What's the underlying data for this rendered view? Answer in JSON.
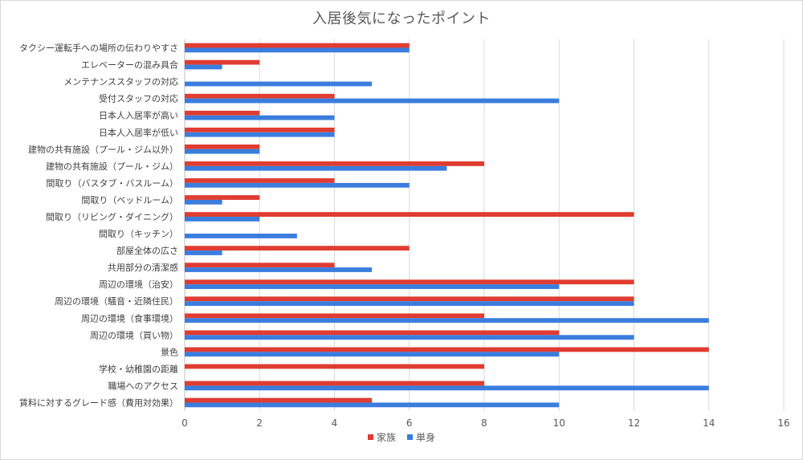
{
  "chart_data": {
    "type": "bar",
    "orientation": "horizontal",
    "title": "入居後気になったポイント",
    "xlabel": "",
    "ylabel": "",
    "xlim": [
      0,
      16
    ],
    "x_ticks": [
      0,
      2,
      4,
      6,
      8,
      10,
      12,
      14,
      16
    ],
    "grid": "vertical",
    "legend_position": "bottom",
    "categories": [
      "タクシー運転手への場所の伝わりやすさ",
      "エレベーターの混み具合",
      "メンテナンススタッフの対応",
      "受付スタッフの対応",
      "日本人入居率が高い",
      "日本人入居率が低い",
      "建物の共有施設（プール・ジム以外）",
      "建物の共有施設（プール・ジム）",
      "間取り（バスタブ・バスルーム）",
      "間取り（ベッドルーム）",
      "間取り（リビング・ダイニング）",
      "間取り（キッチン）",
      "部屋全体の広さ",
      "共用部分の清潔感",
      "周辺の環境（治安）",
      "周辺の環境（騒音・近隣住民）",
      "周辺の環境（食事環境）",
      "周辺の環境（買い物）",
      "景色",
      "学校・幼稚園の距離",
      "職場へのアクセス",
      "賃料に対するグレード感（費用対効果）"
    ],
    "series": [
      {
        "name": "家族",
        "color": "#e03c31",
        "values": [
          6,
          2,
          0,
          4,
          2,
          4,
          2,
          8,
          4,
          2,
          12,
          0,
          6,
          4,
          12,
          12,
          8,
          10,
          14,
          8,
          8,
          5
        ]
      },
      {
        "name": "単身",
        "color": "#3b7ddd",
        "values": [
          6,
          1,
          5,
          10,
          4,
          4,
          2,
          7,
          6,
          1,
          2,
          3,
          1,
          5,
          10,
          12,
          14,
          12,
          10,
          0,
          14,
          10
        ]
      }
    ]
  }
}
